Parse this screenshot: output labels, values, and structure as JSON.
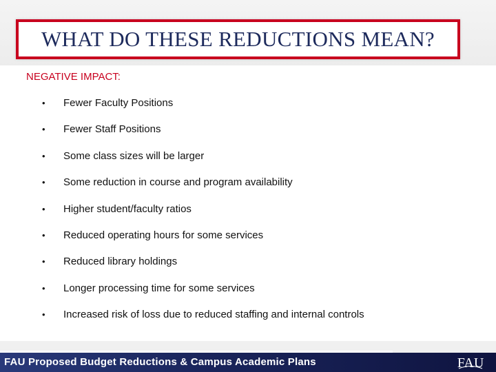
{
  "slide": {
    "title": "WHAT DO THESE REDUCTIONS MEAN?",
    "section_heading": "NEGATIVE IMPACT:",
    "bullet_glyph": "•",
    "bullets": [
      "Fewer Faculty Positions",
      "Fewer Staff Positions",
      "Some class sizes will be larger",
      "Some reduction in course and program availability",
      "Higher student/faculty ratios",
      "Reduced operating hours for some services",
      "Reduced library holdings",
      "Longer processing time for some services",
      "Increased risk of loss due to reduced staffing and internal controls"
    ]
  },
  "footer": {
    "text": "FAU Proposed Budget Reductions & Campus Academic Plans",
    "logo_text": "FAU"
  },
  "colors": {
    "title_border": "#c8001e",
    "title_text": "#1d2a5c",
    "heading_text": "#c8001e",
    "footer_bg": "#1a255c"
  },
  "icons": {
    "logo": "fau-logo-icon"
  }
}
